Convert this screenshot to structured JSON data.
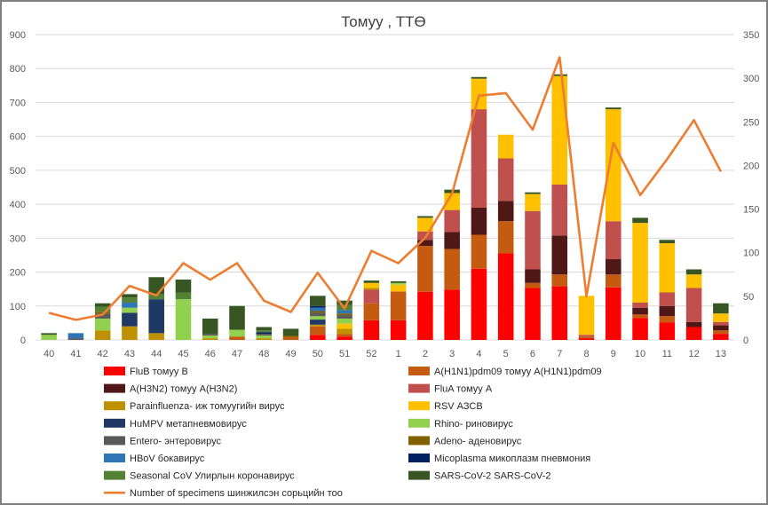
{
  "chart_data": {
    "type": "bar",
    "title": "Томуу , ТТӨ",
    "categories": [
      "40",
      "41",
      "42",
      "43",
      "44",
      "45",
      "46",
      "47",
      "48",
      "49",
      "50",
      "51",
      "52",
      "1",
      "2",
      "3",
      "4",
      "5",
      "6",
      "7",
      "8",
      "9",
      "10",
      "11",
      "12",
      "13"
    ],
    "y_left": {
      "min": 0,
      "max": 900,
      "ticks": [
        0,
        100,
        200,
        300,
        400,
        500,
        600,
        700,
        800,
        900
      ]
    },
    "y_right": {
      "min": 0,
      "max": 350,
      "ticks": [
        0,
        50,
        100,
        150,
        200,
        250,
        300,
        350
      ]
    },
    "stacked": true,
    "grid": true,
    "legend_position": "bottom",
    "series": [
      {
        "name": "FluB томуу B",
        "color": "#ff0000",
        "values": [
          0,
          0,
          0,
          0,
          0,
          0,
          0,
          0,
          0,
          0,
          15,
          10,
          58,
          58,
          142,
          148,
          210,
          255,
          153,
          158,
          5,
          155,
          65,
          52,
          38,
          18
        ]
      },
      {
        "name": "A(H1N1)pdm09 томуу A(H1N1)pdm09",
        "color": "#c55a11",
        "values": [
          0,
          0,
          0,
          0,
          0,
          0,
          0,
          10,
          0,
          8,
          25,
          8,
          50,
          85,
          135,
          120,
          100,
          95,
          15,
          35,
          5,
          38,
          10,
          18,
          0,
          10
        ]
      },
      {
        "name": "A(H3N2) томуу A(H3N2)",
        "color": "#4f1716",
        "values": [
          0,
          0,
          0,
          0,
          0,
          0,
          0,
          0,
          0,
          0,
          0,
          0,
          0,
          0,
          18,
          50,
          80,
          60,
          40,
          115,
          0,
          45,
          20,
          30,
          15,
          15
        ]
      },
      {
        "name": "FluA томуу A",
        "color": "#c0504d",
        "values": [
          0,
          0,
          0,
          0,
          0,
          0,
          0,
          0,
          0,
          0,
          0,
          0,
          40,
          0,
          25,
          65,
          290,
          125,
          172,
          150,
          5,
          112,
          15,
          40,
          100,
          10
        ]
      },
      {
        "name": "Parainfluenza- иж томуугийн вирус",
        "color": "#bf9000",
        "values": [
          0,
          0,
          28,
          40,
          20,
          0,
          5,
          0,
          5,
          0,
          5,
          15,
          5,
          0,
          0,
          0,
          0,
          0,
          0,
          0,
          0,
          0,
          0,
          0,
          0,
          0
        ]
      },
      {
        "name": "RSV АЗСВ",
        "color": "#ffc000",
        "values": [
          0,
          0,
          0,
          0,
          0,
          0,
          0,
          0,
          0,
          0,
          0,
          15,
          15,
          20,
          40,
          50,
          90,
          70,
          50,
          320,
          115,
          330,
          235,
          145,
          40,
          25
        ]
      },
      {
        "name": "HuMPV метапневмовирус",
        "color": "#203864",
        "values": [
          0,
          0,
          0,
          40,
          100,
          0,
          0,
          0,
          0,
          0,
          15,
          0,
          0,
          0,
          0,
          0,
          0,
          0,
          0,
          0,
          0,
          0,
          0,
          0,
          0,
          0
        ]
      },
      {
        "name": "Rhino- риновирус",
        "color": "#92d050",
        "values": [
          15,
          0,
          35,
          15,
          0,
          120,
          8,
          20,
          8,
          0,
          10,
          15,
          0,
          5,
          0,
          0,
          0,
          0,
          0,
          0,
          0,
          0,
          0,
          0,
          0,
          0
        ]
      },
      {
        "name": "Entero- энтеровирус",
        "color": "#595959",
        "values": [
          0,
          5,
          15,
          0,
          0,
          0,
          5,
          0,
          5,
          0,
          10,
          10,
          0,
          0,
          0,
          0,
          0,
          0,
          0,
          0,
          0,
          0,
          0,
          0,
          0,
          0
        ]
      },
      {
        "name": "Adeno- аденовирус",
        "color": "#806000",
        "values": [
          0,
          0,
          5,
          0,
          0,
          0,
          0,
          0,
          0,
          5,
          5,
          5,
          0,
          0,
          0,
          0,
          0,
          0,
          0,
          0,
          0,
          0,
          0,
          0,
          0,
          0
        ]
      },
      {
        "name": "HBoV бокавирус",
        "color": "#2e75b6",
        "values": [
          0,
          15,
          0,
          15,
          0,
          0,
          0,
          0,
          0,
          0,
          10,
          10,
          0,
          0,
          0,
          0,
          0,
          0,
          0,
          0,
          0,
          0,
          0,
          0,
          0,
          0
        ]
      },
      {
        "name": "Micoplasma микоплазм пневмония",
        "color": "#002060",
        "values": [
          0,
          0,
          0,
          0,
          0,
          0,
          0,
          0,
          5,
          0,
          5,
          0,
          0,
          0,
          0,
          0,
          0,
          0,
          0,
          0,
          0,
          0,
          0,
          0,
          0,
          0
        ]
      },
      {
        "name": "Seasonal CoV Улирлын коронавирус",
        "color": "#548235",
        "values": [
          0,
          0,
          15,
          15,
          15,
          20,
          0,
          0,
          5,
          0,
          0,
          15,
          0,
          0,
          0,
          0,
          0,
          0,
          0,
          0,
          0,
          0,
          0,
          0,
          0,
          0
        ]
      },
      {
        "name": "SARS-CoV-2 SARS-CoV-2",
        "color": "#375623",
        "values": [
          5,
          0,
          10,
          10,
          50,
          38,
          45,
          70,
          10,
          20,
          30,
          13,
          7,
          5,
          5,
          10,
          5,
          0,
          5,
          5,
          0,
          5,
          15,
          10,
          15,
          30
        ]
      }
    ],
    "line": {
      "name": "Number of specimens шинжилсэн сорьцийн тоо",
      "color": "#ed7d31",
      "axis": "right",
      "values": [
        31,
        23,
        29,
        62,
        51,
        88,
        69,
        88,
        45,
        32,
        77,
        36,
        102,
        88,
        117,
        168,
        280,
        283,
        241,
        324,
        50,
        226,
        166,
        207,
        252,
        193
      ]
    }
  }
}
